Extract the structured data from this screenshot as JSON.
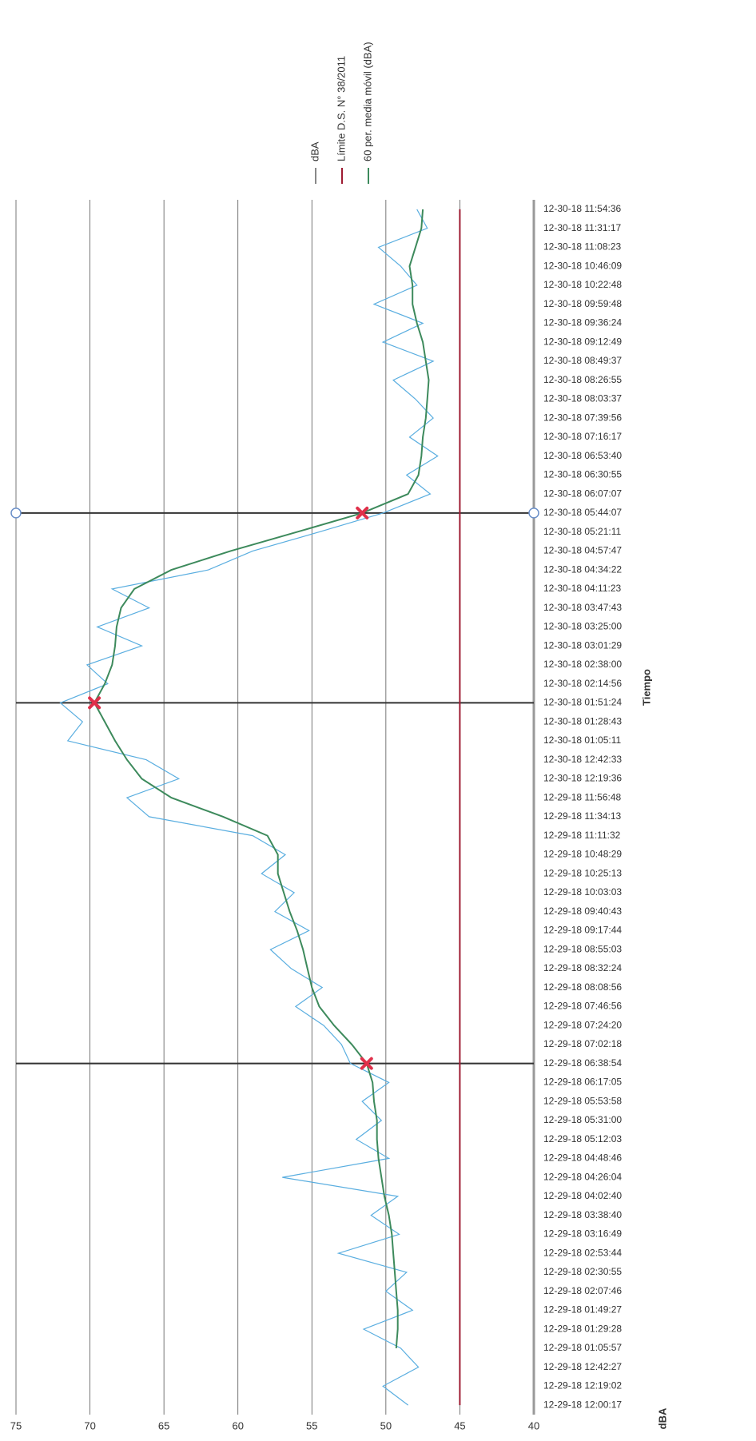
{
  "chart_data": {
    "type": "line",
    "x_label": "Tiempo",
    "y_label": "dBA",
    "categories": [
      "12-29-18 12:00:17",
      "12-29-18 12:19:02",
      "12-29-18 12:42:27",
      "12-29-18 01:05:57",
      "12-29-18 01:29:28",
      "12-29-18 01:49:27",
      "12-29-18 02:07:46",
      "12-29-18 02:30:55",
      "12-29-18 02:53:44",
      "12-29-18 03:16:49",
      "12-29-18 03:38:40",
      "12-29-18 04:02:40",
      "12-29-18 04:26:04",
      "12-29-18 04:48:46",
      "12-29-18 05:12:03",
      "12-29-18 05:31:00",
      "12-29-18 05:53:58",
      "12-29-18 06:17:05",
      "12-29-18 06:38:54",
      "12-29-18 07:02:18",
      "12-29-18 07:24:20",
      "12-29-18 07:46:56",
      "12-29-18 08:08:56",
      "12-29-18 08:32:24",
      "12-29-18 08:55:03",
      "12-29-18 09:17:44",
      "12-29-18 09:40:43",
      "12-29-18 10:03:03",
      "12-29-18 10:25:13",
      "12-29-18 10:48:29",
      "12-29-18 11:11:32",
      "12-29-18 11:34:13",
      "12-29-18 11:56:48",
      "12-30-18 12:19:36",
      "12-30-18 12:42:33",
      "12-30-18 01:05:11",
      "12-30-18 01:28:43",
      "12-30-18 01:51:24",
      "12-30-18 02:14:56",
      "12-30-18 02:38:00",
      "12-30-18 03:01:29",
      "12-30-18 03:25:00",
      "12-30-18 03:47:43",
      "12-30-18 04:11:23",
      "12-30-18 04:34:22",
      "12-30-18 04:57:47",
      "12-30-18 05:21:11",
      "12-30-18 05:44:07",
      "12-30-18 06:07:07",
      "12-30-18 06:30:55",
      "12-30-18 06:53:40",
      "12-30-18 07:16:17",
      "12-30-18 07:39:56",
      "12-30-18 08:03:37",
      "12-30-18 08:26:55",
      "12-30-18 08:49:37",
      "12-30-18 09:12:49",
      "12-30-18 09:36:24",
      "12-30-18 09:59:48",
      "12-30-18 10:22:48",
      "12-30-18 10:46:09",
      "12-30-18 11:08:23",
      "12-30-18 11:31:17",
      "12-30-18 11:54:36"
    ],
    "series": [
      {
        "name": "dBA",
        "color": "#5aaee0",
        "values": [
          48.5,
          50.2,
          47.8,
          49.0,
          51.5,
          48.2,
          50.0,
          48.6,
          53.2,
          49.1,
          51.0,
          49.2,
          57.0,
          49.8,
          52.0,
          50.3,
          51.6,
          49.8,
          52.4,
          53.0,
          54.2,
          56.1,
          54.3,
          56.4,
          57.8,
          55.2,
          57.5,
          56.2,
          58.4,
          56.8,
          59.0,
          66.0,
          67.5,
          64.0,
          66.2,
          71.5,
          70.5,
          72.0,
          68.8,
          70.2,
          66.5,
          69.5,
          66.0,
          68.5,
          62.0,
          59.0,
          54.5,
          50.2,
          47.0,
          48.6,
          46.5,
          48.4,
          46.8,
          48.0,
          49.5,
          46.8,
          50.2,
          47.5,
          50.8,
          47.9,
          49.0,
          50.5,
          47.2,
          47.9
        ]
      },
      {
        "name": "Límite D.S. N° 38/2011",
        "color": "#9e1b32",
        "values": [
          45,
          45,
          45,
          45,
          45,
          45,
          45,
          45,
          45,
          45,
          45,
          45,
          45,
          45,
          45,
          45,
          45,
          45,
          45,
          45,
          45,
          45,
          45,
          45,
          45,
          45,
          45,
          45,
          45,
          45,
          45,
          45,
          45,
          45,
          45,
          45,
          45,
          45,
          45,
          45,
          45,
          45,
          45,
          45,
          45,
          45,
          45,
          45,
          45,
          45,
          45,
          45,
          45,
          45,
          45,
          45,
          45,
          45,
          45,
          45,
          45,
          45,
          45,
          45
        ]
      },
      {
        "name": "60 per. media móvil (dBA)",
        "color": "#3d8a5c",
        "values": [
          null,
          null,
          null,
          49.3,
          49.2,
          49.2,
          49.3,
          49.4,
          49.5,
          49.6,
          49.8,
          50.1,
          50.3,
          50.5,
          50.6,
          50.6,
          50.8,
          50.9,
          51.3,
          52.3,
          53.5,
          54.5,
          55.0,
          55.3,
          55.6,
          56.0,
          56.5,
          56.9,
          57.3,
          57.3,
          58.0,
          61.0,
          64.5,
          66.5,
          67.5,
          68.3,
          69.0,
          69.7,
          69.0,
          68.5,
          68.3,
          68.2,
          67.9,
          67.0,
          64.5,
          60.5,
          56.0,
          51.6,
          48.5,
          47.8,
          47.6,
          47.5,
          47.3,
          47.2,
          47.1,
          47.3,
          47.5,
          47.9,
          48.2,
          48.2,
          48.4,
          48.0,
          47.6,
          47.5
        ]
      }
    ],
    "markers": {
      "x": [
        "12-29-18 06:38:54",
        "12-30-18 01:51:24",
        "12-30-18 05:44:07"
      ],
      "values": [
        51.3,
        69.7,
        51.6
      ],
      "color": "#e0304a"
    },
    "ylim": [
      40,
      75
    ],
    "yticks": [
      40,
      45,
      50,
      55,
      60,
      65,
      70,
      75
    ],
    "grid": true,
    "legend": "right"
  }
}
